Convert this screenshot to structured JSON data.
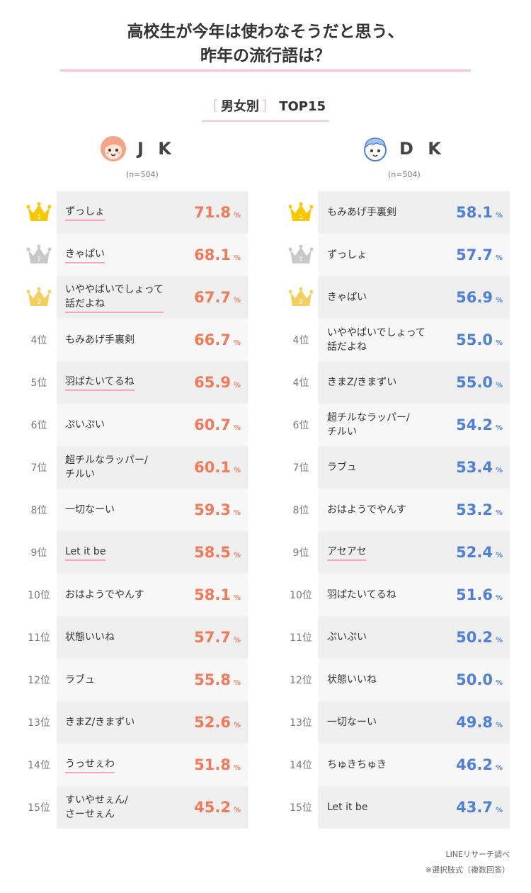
{
  "title_line1": "高校生が今年は使わなそうだと思う、",
  "title_line2": "昨年の流行語は？",
  "subtitle": {
    "bracket_open": "［",
    "gender": "男女別",
    "bracket_close": "］",
    "top": "TOP15"
  },
  "jk": {
    "label": "J K",
    "n": "(n=504)",
    "color": "#f17a5a",
    "rows": [
      {
        "rank": "1",
        "term": "ずっしょ",
        "underline": true,
        "value": "71.8",
        "unit": "%"
      },
      {
        "rank": "2",
        "term": "きゃぱい",
        "underline": true,
        "value": "68.1",
        "unit": "%"
      },
      {
        "rank": "3",
        "term": "いややばいでしょって話だよね",
        "term_a": "いややばいでしょって",
        "term_b": "話だよね",
        "underline": true,
        "value": "67.7",
        "unit": "%"
      },
      {
        "rank": "4位",
        "term": "もみあげ手裏剣",
        "underline": false,
        "value": "66.7",
        "unit": "%"
      },
      {
        "rank": "5位",
        "term": "羽ばたいてるね",
        "underline": true,
        "value": "65.9",
        "unit": "%"
      },
      {
        "rank": "6位",
        "term": "ぷいぷい",
        "underline": false,
        "value": "60.7",
        "unit": "%"
      },
      {
        "rank": "7位",
        "term": "超チルなラッパー/チルい",
        "term_a": "超チルなラッパー/",
        "term_b": "チルい",
        "underline": false,
        "value": "60.1",
        "unit": "%"
      },
      {
        "rank": "8位",
        "term": "一切なーい",
        "underline": false,
        "value": "59.3",
        "unit": "%"
      },
      {
        "rank": "9位",
        "term": "Let it be",
        "underline": true,
        "value": "58.5",
        "unit": "%"
      },
      {
        "rank": "10位",
        "term": "おはようでやんす",
        "underline": false,
        "value": "58.1",
        "unit": "%"
      },
      {
        "rank": "11位",
        "term": "状態いいね",
        "underline": false,
        "value": "57.7",
        "unit": "%"
      },
      {
        "rank": "12位",
        "term": "ラブュ",
        "underline": false,
        "value": "55.8",
        "unit": "%"
      },
      {
        "rank": "13位",
        "term": "きまZ/きまずい",
        "underline": false,
        "value": "52.6",
        "unit": "%"
      },
      {
        "rank": "14位",
        "term": "うっせぇわ",
        "underline": true,
        "value": "51.8",
        "unit": "%"
      },
      {
        "rank": "15位",
        "term": "すいやせぇん/さーせぇん",
        "term_a": "すいやせぇん/",
        "term_b": "さーせぇん",
        "underline": false,
        "value": "45.2",
        "unit": "%"
      }
    ]
  },
  "dk": {
    "label": "D K",
    "n": "(n=504)",
    "color": "#4f7fd6",
    "rows": [
      {
        "rank": "1",
        "term": "もみあげ手裏剣",
        "underline": false,
        "value": "58.1",
        "unit": "%"
      },
      {
        "rank": "2",
        "term": "ずっしょ",
        "underline": false,
        "value": "57.7",
        "unit": "%"
      },
      {
        "rank": "3",
        "term": "きゃぱい",
        "underline": false,
        "value": "56.9",
        "unit": "%"
      },
      {
        "rank": "4位",
        "term": "いややばいでしょって話だよね",
        "term_a": "いややばいでしょって",
        "term_b": "話だよね",
        "underline": false,
        "value": "55.0",
        "unit": "%"
      },
      {
        "rank": "4位",
        "term": "きまZ/きまずい",
        "underline": false,
        "value": "55.0",
        "unit": "%"
      },
      {
        "rank": "6位",
        "term": "超チルなラッパー/チルい",
        "term_a": "超チルなラッパー/",
        "term_b": "チルい",
        "underline": false,
        "value": "54.2",
        "unit": "%"
      },
      {
        "rank": "7位",
        "term": "ラブュ",
        "underline": false,
        "value": "53.4",
        "unit": "%"
      },
      {
        "rank": "8位",
        "term": "おはようでやんす",
        "underline": false,
        "value": "53.2",
        "unit": "%"
      },
      {
        "rank": "9位",
        "term": "アセアセ",
        "underline": true,
        "value": "52.4",
        "unit": "%"
      },
      {
        "rank": "10位",
        "term": "羽ばたいてるね",
        "underline": false,
        "value": "51.6",
        "unit": "%"
      },
      {
        "rank": "11位",
        "term": "ぷいぷい",
        "underline": false,
        "value": "50.2",
        "unit": "%"
      },
      {
        "rank": "12位",
        "term": "状態いいね",
        "underline": false,
        "value": "50.0",
        "unit": "%"
      },
      {
        "rank": "13位",
        "term": "一切なーい",
        "underline": false,
        "value": "49.8",
        "unit": "%"
      },
      {
        "rank": "14位",
        "term": "ちゅきちゅき",
        "underline": false,
        "value": "46.2",
        "unit": "%"
      },
      {
        "rank": "15位",
        "term": "Let it be",
        "underline": false,
        "value": "43.7",
        "unit": "%"
      }
    ]
  },
  "crown_colors": {
    "gold": "#f5c800",
    "silver": "#c8c8c8",
    "bronze": "#f3cf60"
  },
  "footer_line1": "LINEリサーチ調べ",
  "footer_line2": "※選択肢式（複数回答）"
}
